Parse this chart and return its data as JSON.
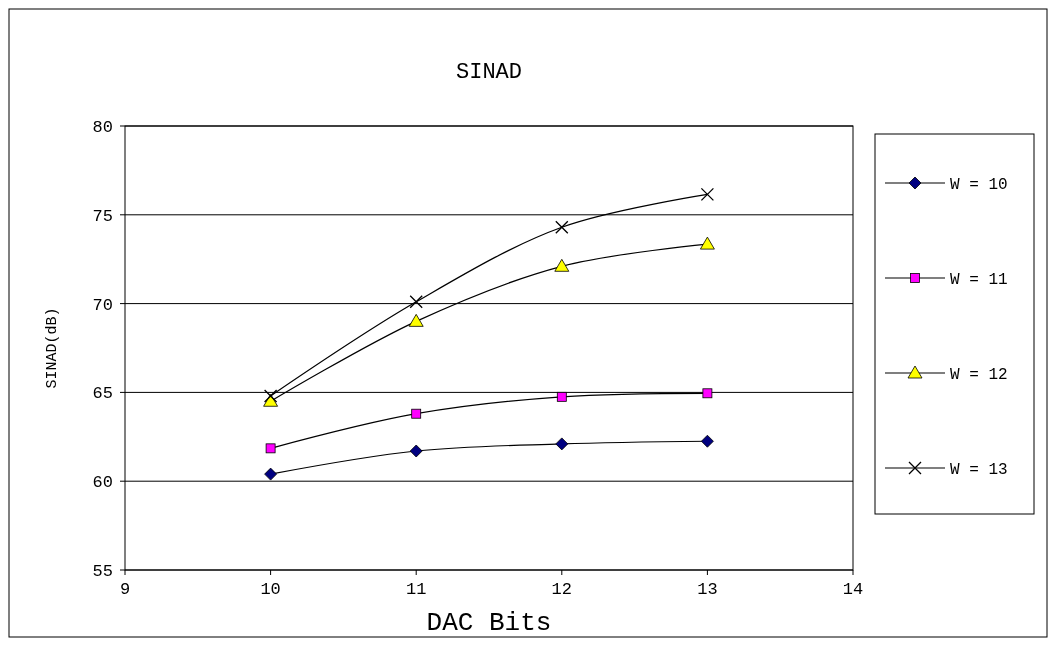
{
  "chart_data": {
    "type": "line",
    "title": "SINAD",
    "xlabel": "DAC Bits",
    "ylabel": "SINAD(dB)",
    "x": [
      10,
      11,
      12,
      13
    ],
    "series": [
      {
        "name": "W = 10",
        "color": "#000080",
        "marker": "diamond",
        "values": [
          60.4,
          61.7,
          62.1,
          62.25
        ]
      },
      {
        "name": "W = 11",
        "color": "#ff00ff",
        "marker": "square",
        "values": [
          61.85,
          63.8,
          64.75,
          64.95
        ]
      },
      {
        "name": "W = 12",
        "color": "#ffff00",
        "marker": "triangle",
        "values": [
          64.5,
          69.0,
          72.1,
          73.35
        ]
      },
      {
        "name": "W = 13",
        "color": "#000000",
        "marker": "cross",
        "values": [
          64.8,
          70.1,
          74.3,
          76.15
        ]
      }
    ],
    "xlim": [
      9,
      14
    ],
    "xticks": [
      9,
      10,
      11,
      12,
      13,
      14
    ],
    "ylim": [
      55,
      80
    ],
    "yticks": [
      55,
      60,
      65,
      70,
      75,
      80
    ],
    "grid": "y",
    "legend": "right",
    "line_style": "solid"
  }
}
